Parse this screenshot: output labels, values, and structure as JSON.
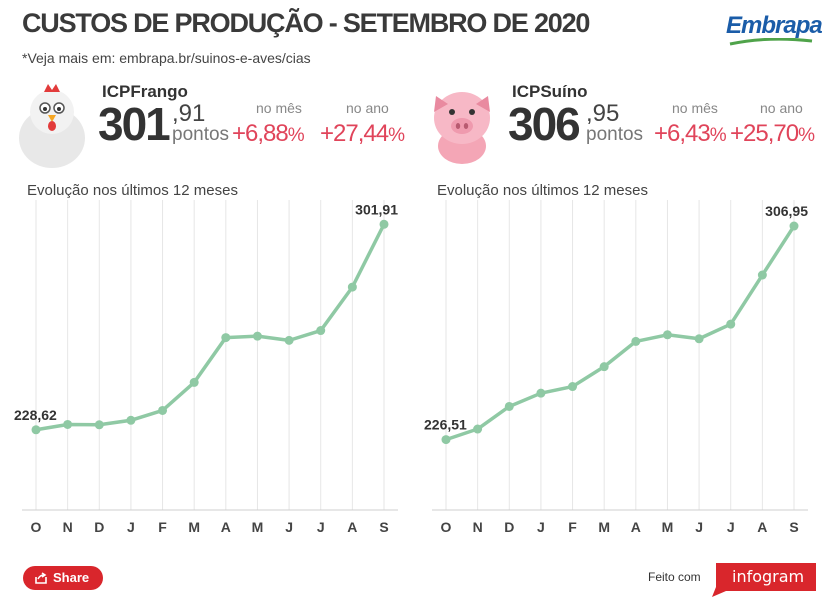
{
  "header": {
    "title": "CUSTOS DE PRODUÇÃO - SETEMBRO DE 2020",
    "subtitle": "*Veja mais em: embrapa.br/suinos-e-aves/cias",
    "logo_text": "Embrapa"
  },
  "indices": [
    {
      "name": "ICPFrango",
      "value_int": "301",
      "value_dec": ",91",
      "unit": "pontos",
      "month_label": "no mês",
      "month_value": "+6,88",
      "year_label": "no ano",
      "year_value": "+27,44",
      "pct": "%",
      "evolution_label": "Evolução nos últimos 12 meses"
    },
    {
      "name": "ICPSuíno",
      "value_int": "306",
      "value_dec": ",95",
      "unit": "pontos",
      "month_label": "no mês",
      "month_value": "+6,43",
      "year_label": "no ano",
      "year_value": "+25,70",
      "pct": "%",
      "evolution_label": "Evolução nos últimos 12 meses"
    }
  ],
  "chart_data": [
    {
      "type": "line",
      "x": [
        "O",
        "N",
        "D",
        "J",
        "F",
        "M",
        "A",
        "M",
        "J",
        "J",
        "A",
        "S"
      ],
      "y": [
        228.62,
        230.5,
        230.4,
        232.0,
        235.5,
        245.5,
        261.5,
        262.0,
        260.5,
        264.0,
        279.5,
        301.91
      ],
      "data_labels": {
        "first": "228,62",
        "last": "301,91"
      },
      "ylim": [
        200,
        307
      ],
      "color": "#8fc9a4",
      "grid": "vertical"
    },
    {
      "type": "line",
      "x": [
        "O",
        "N",
        "D",
        "J",
        "F",
        "M",
        "A",
        "M",
        "J",
        "J",
        "A",
        "S"
      ],
      "y": [
        226.51,
        230.5,
        239.0,
        244.0,
        246.5,
        254.0,
        263.5,
        266.0,
        264.5,
        270.0,
        288.5,
        306.95
      ],
      "data_labels": {
        "first": "226,51",
        "last": "306,95"
      },
      "ylim": [
        200,
        313
      ],
      "color": "#8fc9a4",
      "grid": "vertical"
    }
  ],
  "footer": {
    "share_label": "Share",
    "made_with": "Feito com",
    "brand": "infogram",
    "share_color": "#d9262c"
  }
}
